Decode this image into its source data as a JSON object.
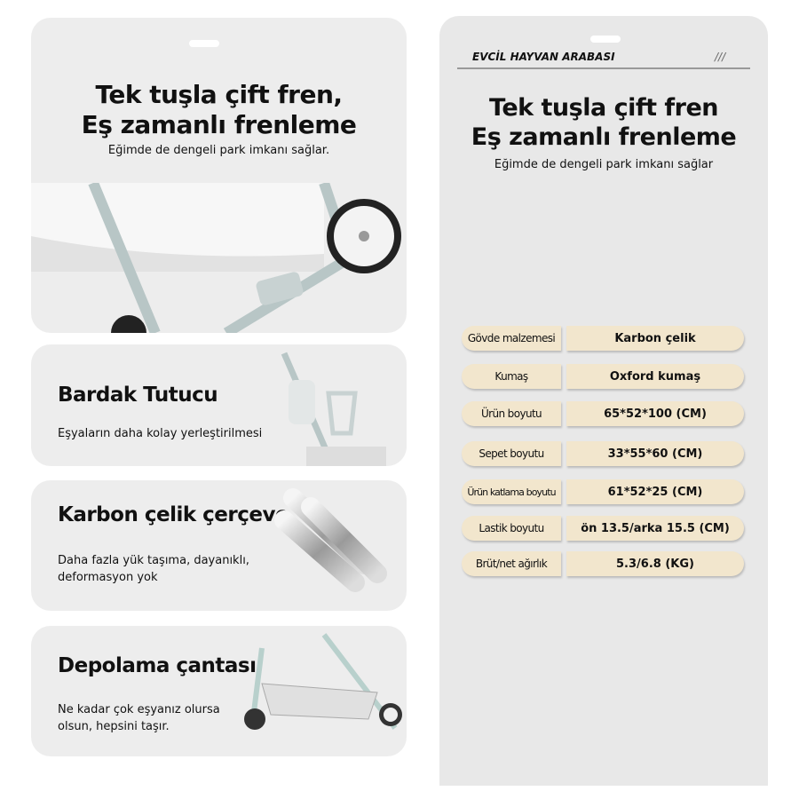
{
  "cards": [
    {
      "title_line1": "Tek tuşla çift fren,",
      "title_line2": "Eş zamanlı frenleme",
      "desc": "Eğimde de dengeli park imkanı sağlar."
    },
    {
      "title": "Bardak Tutucu",
      "desc": "Eşyaların daha kolay yerleştirilmesi"
    },
    {
      "title": "Karbon çelik çerçeve",
      "desc_line1": "Daha fazla yük taşıma, dayanıklı,",
      "desc_line2": "deformasyon yok"
    },
    {
      "title": "Depolama çantası",
      "desc_line1": "Ne kadar çok eşyanız olursa",
      "desc_line2": "olsun, hepsini taşır."
    }
  ],
  "right": {
    "header": "EVCİL HAYVAN ARABASI",
    "header_mark": "///",
    "title_line1": "Tek tuşla çift fren",
    "title_line2": "Eş zamanlı frenleme",
    "subtitle": "Eğimde de dengeli park imkanı sağlar",
    "specs": [
      {
        "label": "Gövde malzemesi",
        "value": "Karbon çelik"
      },
      {
        "label": "Kumaş",
        "value": "Oxford kumaş"
      },
      {
        "label": "Ürün boyutu",
        "value": "65*52*100  (CM)"
      },
      {
        "label": "Sepet boyutu",
        "value": "33*55*60  (CM)"
      },
      {
        "label": "Ürün katlama boyutu",
        "value": "61*52*25  (CM)"
      },
      {
        "label": "Lastik boyutu",
        "value": "ön 13.5/arka 15.5  (CM)"
      },
      {
        "label": "Brüt/net ağırlık",
        "value": "5.3/6.8  (KG)"
      }
    ],
    "colors": {
      "pill": "#f2e6cd",
      "panel": "#e8e8e8"
    }
  }
}
